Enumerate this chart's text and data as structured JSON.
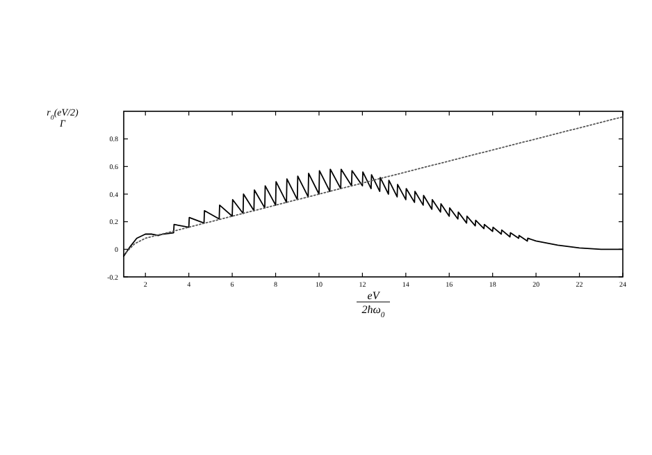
{
  "chart_data": {
    "type": "line",
    "xlabel": "eV\n2ħω$_{0}$",
    "ylabel": "r$_{0}$(eV/2)\nΓ",
    "xlim": [
      1,
      24
    ],
    "xticks": [
      2,
      4,
      6,
      8,
      10,
      12,
      14,
      16,
      18,
      20,
      22,
      24
    ],
    "ylim": [
      -0.2,
      1
    ],
    "yticks": [
      -0.2,
      0,
      0.2,
      0.4,
      0.6,
      0.8
    ],
    "grid": false,
    "series": [
      {
        "color": "#000000",
        "line_style": "solid",
        "x": [
          1,
          1.3,
          1.6,
          2,
          2.3,
          2.6,
          2.8,
          3.3,
          3.32,
          4,
          4.02,
          4.7,
          4.72,
          5.4,
          5.42,
          6,
          6.02,
          6.5,
          6.52,
          7,
          7.02,
          7.5,
          7.52,
          8,
          8.02,
          8.5,
          8.52,
          9,
          9.02,
          9.5,
          9.52,
          10,
          10.02,
          10.5,
          10.52,
          11,
          11.02,
          11.5,
          11.52,
          12,
          12.02,
          12.4,
          12.42,
          12.8,
          12.82,
          13.2,
          13.22,
          13.6,
          13.62,
          14,
          14.02,
          14.4,
          14.42,
          14.8,
          14.82,
          15.2,
          15.22,
          15.6,
          15.62,
          16,
          16.02,
          16.4,
          16.42,
          16.8,
          16.82,
          17.2,
          17.22,
          17.6,
          17.62,
          18,
          18.02,
          18.4,
          18.42,
          18.8,
          18.82,
          19.2,
          19.22,
          19.6,
          19.62,
          20,
          21,
          22,
          23,
          24
        ],
        "values": [
          -0.05,
          0.02,
          0.08,
          0.11,
          0.11,
          0.1,
          0.11,
          0.12,
          0.18,
          0.16,
          0.23,
          0.19,
          0.28,
          0.22,
          0.32,
          0.24,
          0.36,
          0.26,
          0.4,
          0.28,
          0.43,
          0.3,
          0.46,
          0.32,
          0.49,
          0.34,
          0.51,
          0.36,
          0.53,
          0.38,
          0.55,
          0.4,
          0.57,
          0.42,
          0.58,
          0.44,
          0.58,
          0.46,
          0.57,
          0.46,
          0.56,
          0.44,
          0.54,
          0.42,
          0.52,
          0.4,
          0.5,
          0.38,
          0.47,
          0.36,
          0.44,
          0.34,
          0.42,
          0.32,
          0.39,
          0.29,
          0.36,
          0.27,
          0.33,
          0.24,
          0.3,
          0.22,
          0.27,
          0.19,
          0.24,
          0.17,
          0.21,
          0.15,
          0.18,
          0.13,
          0.16,
          0.11,
          0.14,
          0.09,
          0.12,
          0.08,
          0.1,
          0.06,
          0.08,
          0.06,
          0.03,
          0.01,
          0,
          0
        ]
      },
      {
        "color": "#555555",
        "line_style": "dotted",
        "x": [
          1,
          1.5,
          2,
          24
        ],
        "values": [
          -0.04,
          0.04,
          0.08,
          0.96
        ]
      }
    ]
  }
}
